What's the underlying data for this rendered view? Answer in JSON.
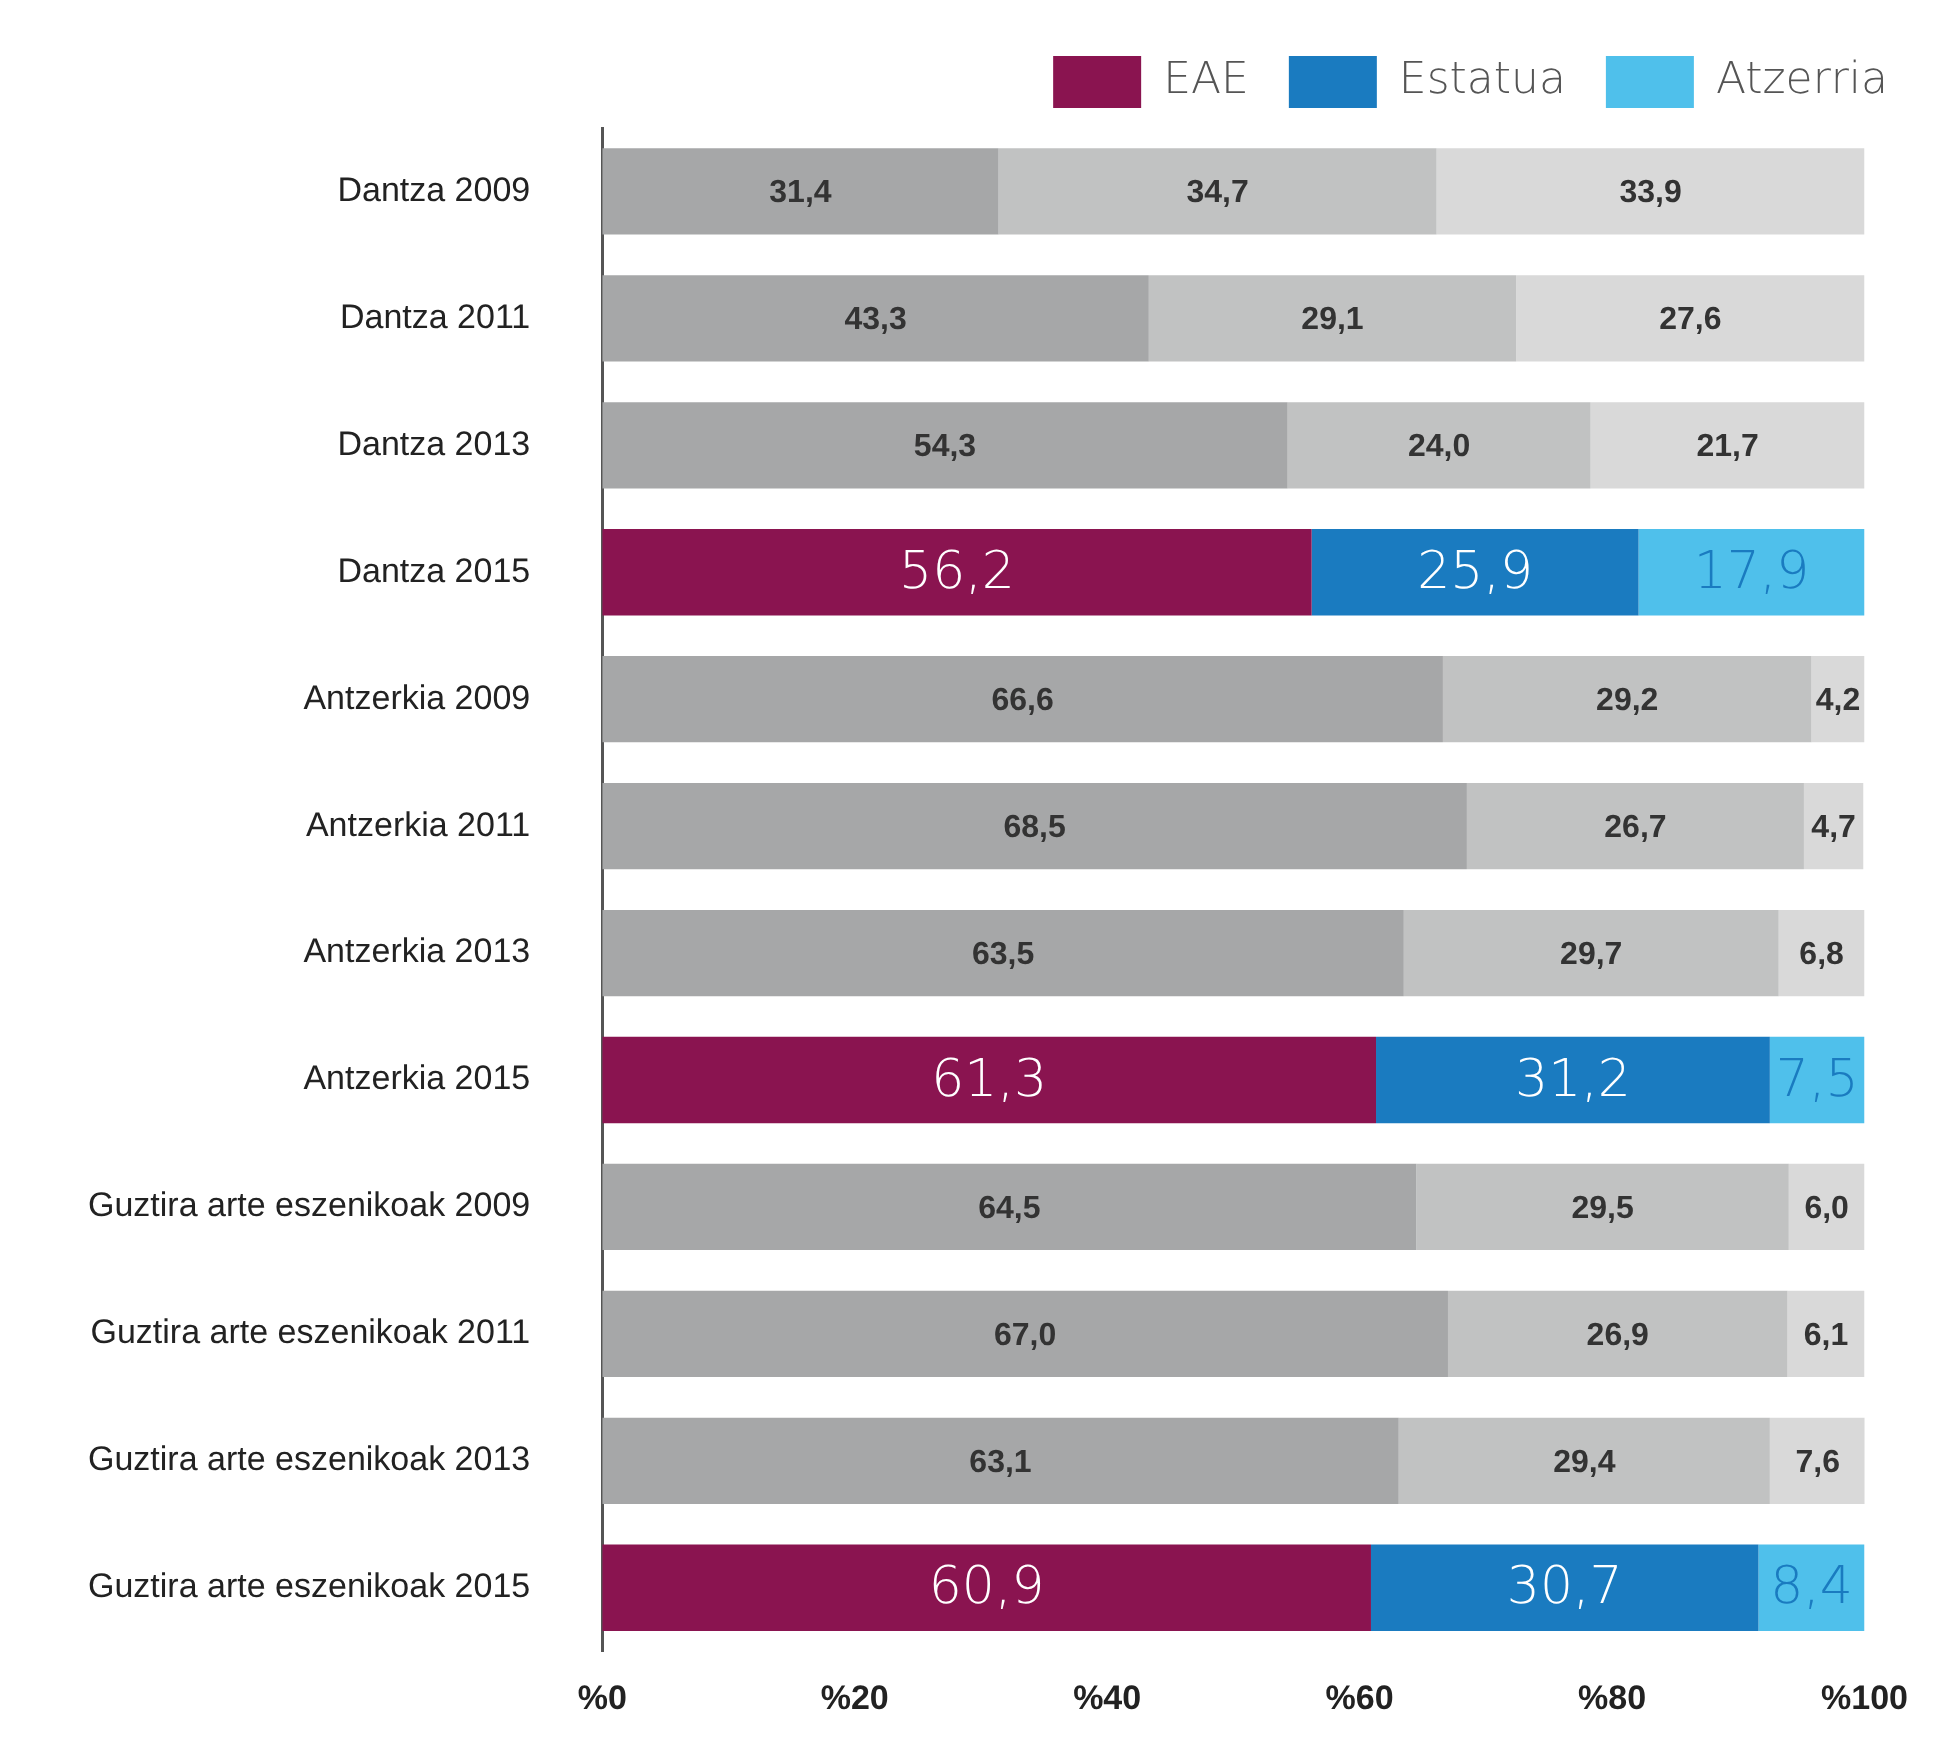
{
  "chart_data": {
    "type": "bar",
    "orientation": "horizontal",
    "stacked": true,
    "legend": "top right",
    "categories": [
      "Dantza 2009",
      "Dantza 2011",
      "Dantza 2013",
      "Dantza 2015",
      "Antzerkia 2009",
      "Antzerkia 2011",
      "Antzerkia 2013",
      "Antzerkia 2015",
      "Guztira arte eszenikoak 2009",
      "Guztira arte eszenikoak 2011",
      "Guztira arte eszenikoak 2013",
      "Guztira arte eszenikoak 2015"
    ],
    "xlim": [
      0,
      100
    ],
    "xticks": [
      {
        "value": 0,
        "label": "%0"
      },
      {
        "value": 20,
        "label": "%20"
      },
      {
        "value": 40,
        "label": "%40"
      },
      {
        "value": 60,
        "label": "%60"
      },
      {
        "value": 80,
        "label": "%80"
      },
      {
        "value": 100,
        "label": "%100"
      }
    ],
    "series": [
      {
        "name": "EAE",
        "color": "#8a1450",
        "values": [
          31.4,
          43.3,
          54.3,
          56.2,
          66.6,
          68.5,
          63.5,
          61.3,
          64.5,
          67.0,
          63.1,
          60.9
        ],
        "value_labels": [
          "31,4",
          "43,3",
          "54,3",
          "56,2",
          "66,6",
          "68,5",
          "63,5",
          "61,3",
          "64,5",
          "67,0",
          "63,1",
          "60,9"
        ],
        "colors": [
          "#a6a7a8",
          "#a6a7a8",
          "#a6a7a8",
          "#8a1450",
          "#a6a7a8",
          "#a6a7a8",
          "#a6a7a8",
          "#8a1450",
          "#a6a7a8",
          "#a6a7a8",
          "#a6a7a8",
          "#8a1450"
        ]
      },
      {
        "name": "Estatua",
        "color": "#1a7bc0",
        "values": [
          34.7,
          29.1,
          24.0,
          25.9,
          29.2,
          26.7,
          29.7,
          31.2,
          29.5,
          26.9,
          29.4,
          30.7
        ],
        "value_labels": [
          "34,7",
          "29,1",
          "24,0",
          "25,9",
          "29,2",
          "26,7",
          "29,7",
          "31,2",
          "29,5",
          "26,9",
          "29,4",
          "30,7"
        ],
        "colors": [
          "#c1c2c2",
          "#c1c2c2",
          "#c1c2c2",
          "#1a7bc0",
          "#c1c2c2",
          "#c1c2c2",
          "#c1c2c2",
          "#1a7bc0",
          "#c1c2c2",
          "#c1c2c2",
          "#c1c2c2",
          "#1a7bc0"
        ]
      },
      {
        "name": "Atzerria",
        "color": "#4fc0eb",
        "values": [
          33.9,
          27.6,
          21.7,
          17.9,
          4.2,
          4.7,
          6.8,
          7.5,
          6.0,
          6.1,
          7.6,
          8.4
        ],
        "value_labels": [
          "33,9",
          "27,6",
          "21,7",
          "17,9",
          "4,2",
          "4,7",
          "6,8",
          "7,5",
          "6,0",
          "6,1",
          "7,6",
          "8,4"
        ],
        "colors": [
          "#d9d9d9",
          "#d9d9d9",
          "#d9d9d9",
          "#4fc0eb",
          "#d9d9d9",
          "#d9d9d9",
          "#d9d9d9",
          "#4fc0eb",
          "#d9d9d9",
          "#d9d9d9",
          "#d9d9d9",
          "#4fc0eb"
        ]
      }
    ]
  }
}
